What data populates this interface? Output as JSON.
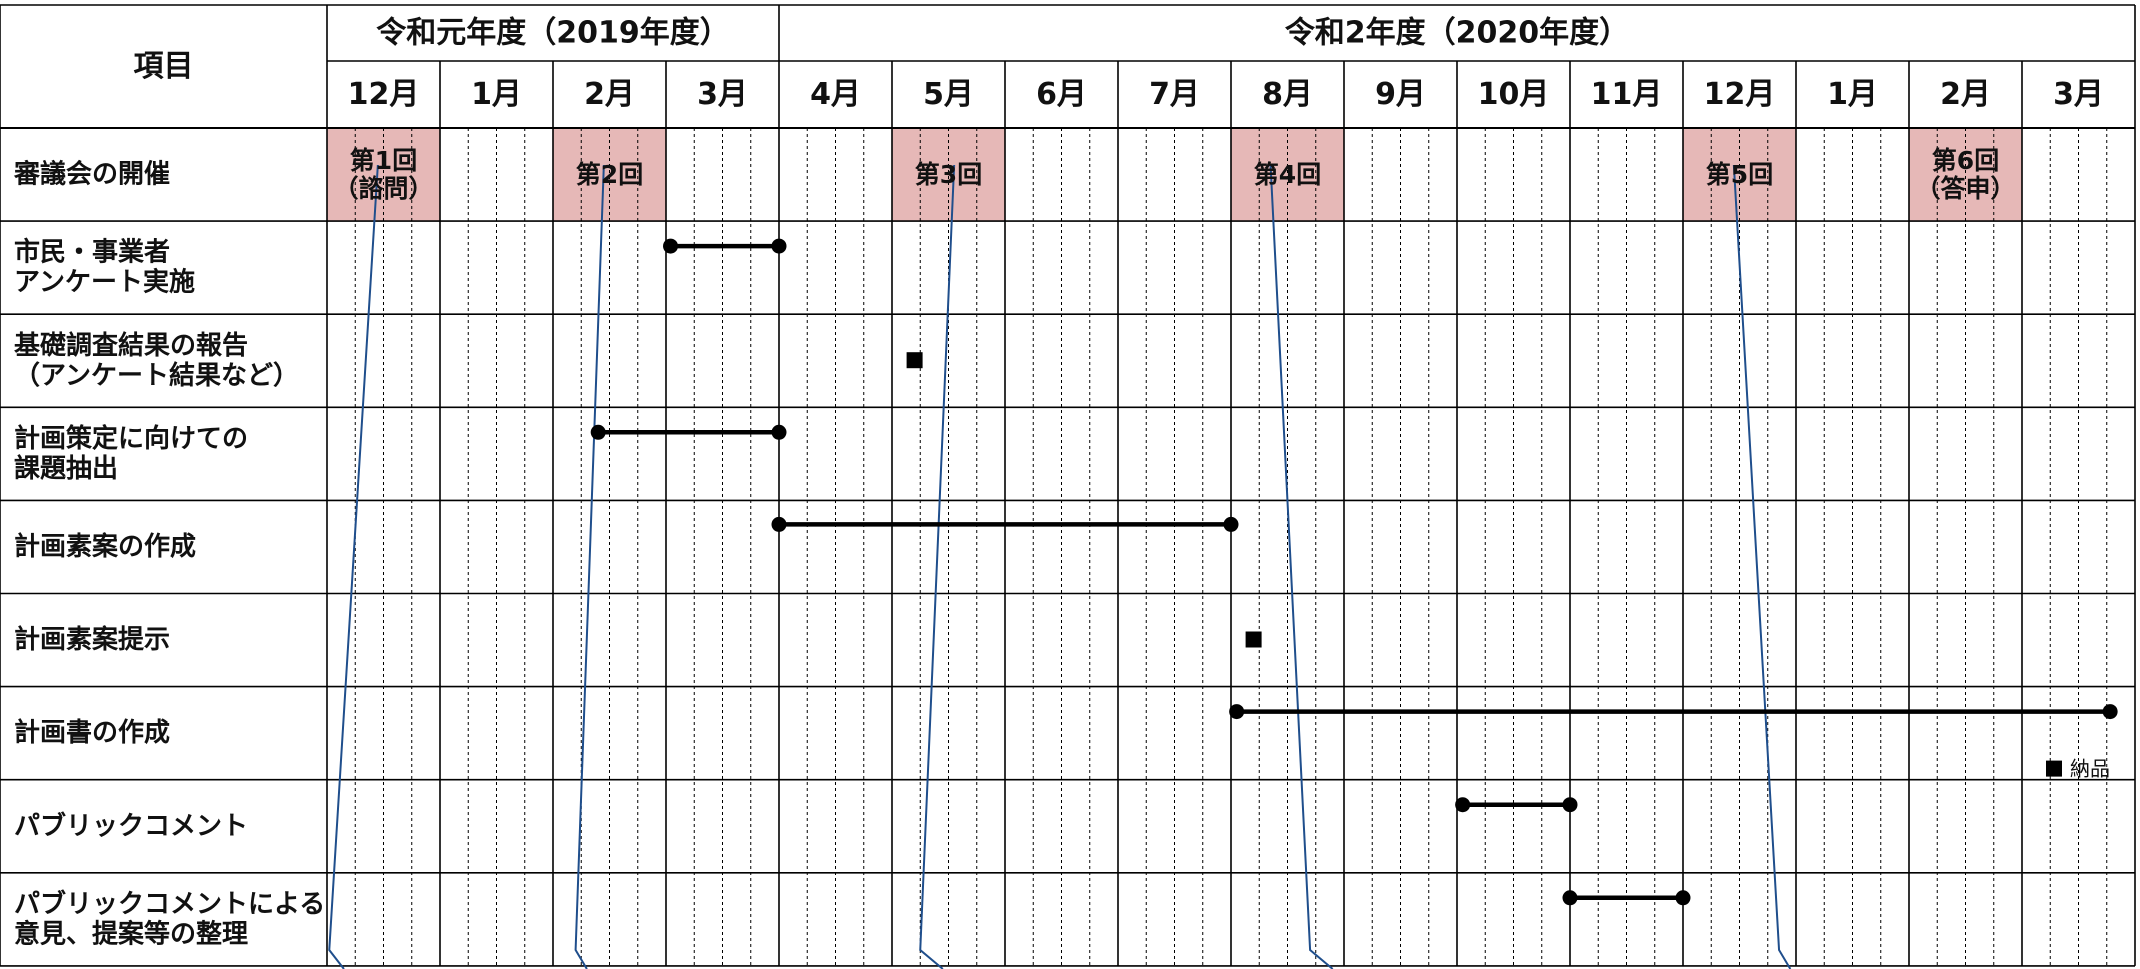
{
  "header": {
    "item_label": "項目",
    "fiscal_years": [
      "令和元年度（2019年度）",
      "令和2年度（2020年度）"
    ]
  },
  "months": [
    "12月",
    "1月",
    "2月",
    "3月",
    "4月",
    "5月",
    "6月",
    "7月",
    "8月",
    "9月",
    "10月",
    "11月",
    "12月",
    "1月",
    "2月",
    "3月"
  ],
  "rows": [
    {
      "label": [
        "審議会の開催"
      ]
    },
    {
      "label": [
        "市民・事業者",
        "アンケート実施"
      ]
    },
    {
      "label": [
        "基礎調査結果の報告",
        "（アンケート結果など）"
      ]
    },
    {
      "label": [
        "計画策定に向けての",
        "課題抽出"
      ]
    },
    {
      "label": [
        "計画素案の作成"
      ]
    },
    {
      "label": [
        "計画素案提示"
      ]
    },
    {
      "label": [
        "計画書の作成"
      ]
    },
    {
      "label": [
        "パブリックコメント"
      ]
    },
    {
      "label": [
        "パブリックコメントによる",
        "意見、提案等の整理"
      ]
    }
  ],
  "meetings": [
    {
      "month_index": 0,
      "label": [
        "第1回",
        "（諮問）"
      ]
    },
    {
      "month_index": 2,
      "label": [
        "第2回"
      ]
    },
    {
      "month_index": 5,
      "label": [
        "第3回"
      ]
    },
    {
      "month_index": 8,
      "label": [
        "第4回"
      ]
    },
    {
      "month_index": 12,
      "label": [
        "第5回"
      ]
    },
    {
      "month_index": 14,
      "label": [
        "第6回",
        "（答申）"
      ]
    }
  ],
  "bars": [
    {
      "row": 1,
      "start": 3.04,
      "end": 4.0
    },
    {
      "row": 3,
      "start": 2.4,
      "end": 4.0
    },
    {
      "row": 4,
      "start": 4.0,
      "end": 8.0
    },
    {
      "row": 6,
      "start": 8.05,
      "end": 15.78
    },
    {
      "row": 7,
      "start": 10.05,
      "end": 11.0
    },
    {
      "row": 8,
      "start": 11.0,
      "end": 12.0
    }
  ],
  "markers": [
    {
      "row": 2,
      "at": 5.2
    },
    {
      "row": 5,
      "at": 8.2
    }
  ],
  "legend": {
    "text": "納品"
  },
  "colors": {
    "meeting_fill": "#e6b8b7",
    "flow_line": "#1f4e8c",
    "grid": "#000000"
  }
}
